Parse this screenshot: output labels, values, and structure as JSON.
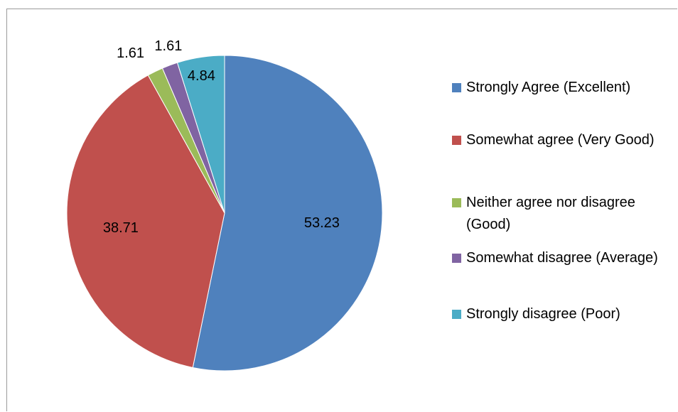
{
  "chart_data": {
    "type": "pie",
    "title": "",
    "slices": [
      {
        "label": "Strongly Agree (Excellent)",
        "value": 53.23,
        "color": "#4f81bd"
      },
      {
        "label": "Somewhat agree (Very Good)",
        "value": 38.71,
        "color": "#c0504d"
      },
      {
        "label": "Neither agree nor disagree (Good)",
        "value": 1.61,
        "color": "#9bbb59"
      },
      {
        "label": "Somewhat disagree (Average)",
        "value": 1.61,
        "color": "#8064a2"
      },
      {
        "label": "Strongly disagree (Poor)",
        "value": 4.84,
        "color": "#4bacc6"
      }
    ],
    "legend_position": "right"
  }
}
